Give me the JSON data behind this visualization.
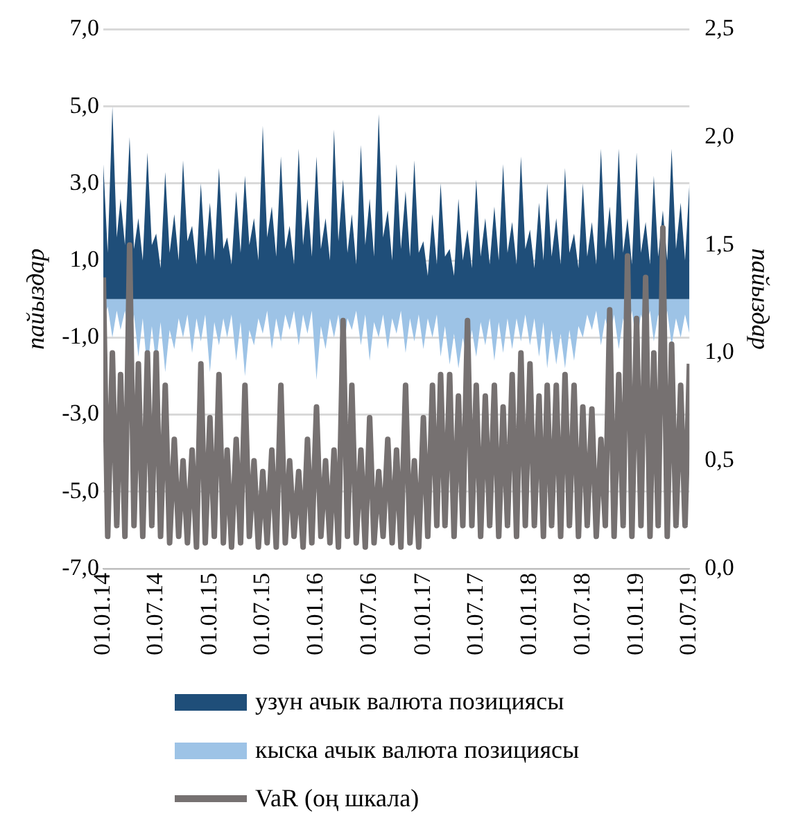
{
  "chart_data": {
    "type": "area",
    "ylabel": "пайыздар",
    "y2label": "пайыздар",
    "x": [
      "2014-01-01",
      "2014-01-16",
      "2014-02-01",
      "2014-02-16",
      "2014-03-01",
      "2014-03-16",
      "2014-04-01",
      "2014-04-16",
      "2014-05-01",
      "2014-05-16",
      "2014-06-01",
      "2014-06-16",
      "2014-07-01",
      "2014-07-16",
      "2014-08-01",
      "2014-08-16",
      "2014-09-01",
      "2014-09-16",
      "2014-10-01",
      "2014-10-16",
      "2014-11-01",
      "2014-11-16",
      "2014-12-01",
      "2014-12-16",
      "2015-01-01",
      "2015-01-16",
      "2015-02-01",
      "2015-02-16",
      "2015-03-01",
      "2015-03-16",
      "2015-04-01",
      "2015-04-16",
      "2015-05-01",
      "2015-05-16",
      "2015-06-01",
      "2015-06-16",
      "2015-07-01",
      "2015-07-16",
      "2015-08-01",
      "2015-08-16",
      "2015-09-01",
      "2015-09-16",
      "2015-10-01",
      "2015-10-16",
      "2015-11-01",
      "2015-11-16",
      "2015-12-01",
      "2015-12-16",
      "2016-01-01",
      "2016-01-16",
      "2016-02-01",
      "2016-02-16",
      "2016-03-01",
      "2016-03-16",
      "2016-04-01",
      "2016-04-16",
      "2016-05-01",
      "2016-05-16",
      "2016-06-01",
      "2016-06-16",
      "2016-07-01",
      "2016-07-16",
      "2016-08-01",
      "2016-08-16",
      "2016-09-01",
      "2016-09-16",
      "2016-10-01",
      "2016-10-16",
      "2016-11-01",
      "2016-11-16",
      "2016-12-01",
      "2016-12-16",
      "2017-01-01",
      "2017-01-16",
      "2017-02-01",
      "2017-02-16",
      "2017-03-01",
      "2017-03-16",
      "2017-04-01",
      "2017-04-16",
      "2017-05-01",
      "2017-05-16",
      "2017-06-01",
      "2017-06-16",
      "2017-07-01",
      "2017-07-16",
      "2017-08-01",
      "2017-08-16",
      "2017-09-01",
      "2017-09-16",
      "2017-10-01",
      "2017-10-16",
      "2017-11-01",
      "2017-11-16",
      "2017-12-01",
      "2017-12-16",
      "2018-01-01",
      "2018-01-16",
      "2018-02-01",
      "2018-02-16",
      "2018-03-01",
      "2018-03-16",
      "2018-04-01",
      "2018-04-16",
      "2018-05-01",
      "2018-05-16",
      "2018-06-01",
      "2018-06-16",
      "2018-07-01",
      "2018-07-16",
      "2018-08-01",
      "2018-08-16",
      "2018-09-01",
      "2018-09-16",
      "2018-10-01",
      "2018-10-16",
      "2018-11-01",
      "2018-11-16",
      "2018-12-01",
      "2018-12-16",
      "2019-01-01",
      "2019-01-16",
      "2019-02-01",
      "2019-02-16",
      "2019-03-01",
      "2019-03-16",
      "2019-04-01",
      "2019-04-16",
      "2019-05-01",
      "2019-05-16",
      "2019-06-01",
      "2019-06-16",
      "2019-07-01"
    ],
    "series": [
      {
        "name": "узун ачык валюта позициясы",
        "type": "area",
        "color": "#1f4e79",
        "values": [
          3.5,
          1.2,
          5.0,
          1.6,
          2.6,
          1.4,
          4.2,
          1.3,
          2.1,
          1.0,
          3.8,
          1.4,
          1.7,
          0.8,
          3.3,
          1.2,
          2.2,
          1.0,
          3.6,
          1.5,
          1.9,
          0.9,
          3.0,
          1.1,
          2.5,
          1.0,
          3.4,
          1.3,
          1.6,
          0.9,
          2.8,
          1.2,
          3.2,
          1.4,
          2.1,
          1.0,
          4.5,
          1.6,
          2.4,
          1.1,
          3.7,
          1.3,
          1.9,
          0.9,
          3.9,
          1.4,
          2.6,
          1.1,
          3.7,
          1.3,
          2.1,
          1.0,
          4.4,
          1.5,
          3.1,
          1.2,
          2.2,
          0.9,
          4.0,
          1.4,
          2.6,
          1.1,
          4.8,
          1.6,
          2.3,
          1.0,
          3.5,
          1.3,
          2.8,
          1.1,
          3.6,
          1.2,
          1.5,
          0.6,
          2.2,
          0.9,
          3.0,
          1.1,
          1.3,
          0.6,
          2.6,
          1.0,
          1.8,
          0.8,
          3.1,
          1.1,
          2.1,
          0.9,
          2.4,
          1.0,
          3.5,
          1.2,
          2.0,
          0.9,
          3.7,
          1.3,
          1.8,
          0.8,
          2.5,
          1.0,
          3.0,
          1.1,
          2.1,
          0.9,
          3.4,
          1.2,
          1.7,
          0.8,
          3.0,
          1.1,
          2.0,
          0.9,
          3.9,
          1.3,
          2.4,
          1.0,
          3.9,
          1.2,
          2.1,
          0.9,
          3.8,
          1.2,
          2.0,
          0.9,
          3.2,
          1.1,
          2.3,
          1.0,
          3.9,
          1.3,
          2.5,
          1.0,
          3.0
        ]
      },
      {
        "name": "кыска ачык валюта позициясы",
        "type": "area",
        "color": "#9dc3e6",
        "values": [
          -0.6,
          -0.2,
          -1.0,
          -0.3,
          -0.8,
          -0.3,
          -1.2,
          -0.4,
          -1.5,
          -0.5,
          -1.9,
          -0.7,
          -1.7,
          -0.6,
          -1.9,
          -0.8,
          -1.3,
          -0.5,
          -1.0,
          -0.4,
          -1.4,
          -0.5,
          -1.1,
          -0.4,
          -1.9,
          -0.6,
          -1.2,
          -0.5,
          -1.0,
          -0.4,
          -1.6,
          -0.6,
          -2.0,
          -0.8,
          -1.2,
          -0.5,
          -0.9,
          -0.3,
          -1.3,
          -0.5,
          -1.1,
          -0.4,
          -0.8,
          -0.3,
          -1.2,
          -0.4,
          -0.9,
          -0.3,
          -2.1,
          -0.7,
          -1.3,
          -0.5,
          -1.0,
          -0.4,
          -1.5,
          -0.5,
          -0.8,
          -0.3,
          -1.2,
          -0.4,
          -1.6,
          -0.6,
          -1.0,
          -0.4,
          -1.3,
          -0.5,
          -0.9,
          -0.3,
          -1.4,
          -0.5,
          -1.1,
          -0.4,
          -1.3,
          -0.5,
          -1.0,
          -0.4,
          -1.5,
          -0.7,
          -1.7,
          -0.9,
          -1.8,
          -1.0,
          -1.6,
          -0.8,
          -1.5,
          -0.6,
          -1.2,
          -0.5,
          -1.6,
          -0.6,
          -1.4,
          -0.5,
          -1.3,
          -0.5,
          -1.1,
          -0.4,
          -1.2,
          -0.5,
          -1.5,
          -0.6,
          -1.8,
          -0.8,
          -1.7,
          -0.9,
          -1.8,
          -0.8,
          -1.6,
          -0.7,
          -1.0,
          -0.4,
          -0.8,
          -0.3,
          -1.2,
          -0.5,
          -1.0,
          -0.4,
          -1.3,
          -0.5,
          -0.9,
          -0.3,
          -1.2,
          -0.4,
          -0.8,
          -0.3,
          -1.1,
          -0.4,
          -0.9,
          -0.3,
          -1.2,
          -0.5,
          -1.0,
          -0.4,
          -0.9
        ]
      },
      {
        "name": "VaR (оң шкала)",
        "type": "line",
        "axis": "y2",
        "color": "#767171",
        "values": [
          1.35,
          0.15,
          1.0,
          0.2,
          0.9,
          0.15,
          1.5,
          0.2,
          0.95,
          0.15,
          1.0,
          0.2,
          1.0,
          0.15,
          0.85,
          0.12,
          0.6,
          0.15,
          0.5,
          0.12,
          0.55,
          0.1,
          0.95,
          0.12,
          0.7,
          0.15,
          0.9,
          0.12,
          0.55,
          0.1,
          0.6,
          0.12,
          0.85,
          0.15,
          0.5,
          0.1,
          0.45,
          0.12,
          0.55,
          0.1,
          0.85,
          0.12,
          0.5,
          0.15,
          0.45,
          0.1,
          0.6,
          0.12,
          0.75,
          0.15,
          0.5,
          0.12,
          0.55,
          0.1,
          1.15,
          0.15,
          0.85,
          0.12,
          0.55,
          0.1,
          0.7,
          0.12,
          0.45,
          0.15,
          0.6,
          0.12,
          0.55,
          0.1,
          0.85,
          0.12,
          0.5,
          0.1,
          0.7,
          0.15,
          0.85,
          0.2,
          0.9,
          0.2,
          0.9,
          0.15,
          0.8,
          0.2,
          1.15,
          0.2,
          0.85,
          0.15,
          0.8,
          0.2,
          0.85,
          0.15,
          0.75,
          0.2,
          0.9,
          0.15,
          1.0,
          0.2,
          0.95,
          0.2,
          0.8,
          0.15,
          0.85,
          0.2,
          0.85,
          0.15,
          0.9,
          0.2,
          0.85,
          0.15,
          0.75,
          0.2,
          0.74,
          0.15,
          0.6,
          0.2,
          1.2,
          0.15,
          0.9,
          0.2,
          1.45,
          0.15,
          1.16,
          0.2,
          1.35,
          0.15,
          1.0,
          0.2,
          1.58,
          0.15,
          1.04,
          0.2,
          0.85,
          0.2,
          0.95
        ]
      }
    ],
    "xlim": [
      "2014-01-01",
      "2019-07-01"
    ],
    "xticks": [
      {
        "value": "2014-01-01",
        "label": "01.01.14"
      },
      {
        "value": "2014-07-01",
        "label": "01.07.14"
      },
      {
        "value": "2015-01-01",
        "label": "01.01.15"
      },
      {
        "value": "2015-07-01",
        "label": "01.07.15"
      },
      {
        "value": "2016-01-01",
        "label": "01.01.16"
      },
      {
        "value": "2016-07-01",
        "label": "01.07.16"
      },
      {
        "value": "2017-01-01",
        "label": "01.01.17"
      },
      {
        "value": "2017-07-01",
        "label": "01.07.17"
      },
      {
        "value": "2018-01-01",
        "label": "01.01.18"
      },
      {
        "value": "2018-07-01",
        "label": "01.07.18"
      },
      {
        "value": "2019-01-01",
        "label": "01.01.19"
      },
      {
        "value": "2019-07-01",
        "label": "01.07.19"
      }
    ],
    "ylim": [
      -7,
      7
    ],
    "yticks": [
      {
        "value": -7,
        "label": "-7,0"
      },
      {
        "value": -5,
        "label": "-5,0"
      },
      {
        "value": -3,
        "label": "-3,0"
      },
      {
        "value": -1,
        "label": "-1,0"
      },
      {
        "value": 1,
        "label": "1,0"
      },
      {
        "value": 3,
        "label": "3,0"
      },
      {
        "value": 5,
        "label": "5,0"
      },
      {
        "value": 7,
        "label": "7,0"
      }
    ],
    "y2lim": [
      0,
      2.5
    ],
    "y2ticks": [
      {
        "value": 0,
        "label": "0,0"
      },
      {
        "value": 0.5,
        "label": "0,5"
      },
      {
        "value": 1,
        "label": "1,0"
      },
      {
        "value": 1.5,
        "label": "1,5"
      },
      {
        "value": 2,
        "label": "2,0"
      },
      {
        "value": 2.5,
        "label": "2,5"
      }
    ],
    "grid": "y",
    "legend": "bottom",
    "marker": "none",
    "line_style": "solid"
  }
}
